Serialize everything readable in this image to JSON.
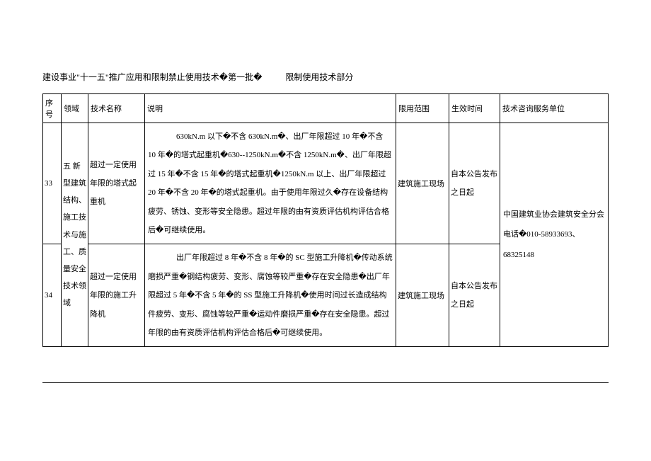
{
  "title_main": "建设事业\"十一五\"推广应用和限制禁止使用技术�第一批�",
  "title_sub": "限制使用技术部分",
  "headers": {
    "seq": "序号",
    "domain": "领域",
    "tech": "技术名称",
    "desc": "说明",
    "scope": "限用范围",
    "time": "生效时间",
    "service": "技术咨询服务单位"
  },
  "rows": {
    "r1": {
      "seq": "33",
      "tech": "超过一定使用年限的塔式起重机",
      "desc": "630kN.m 以下�不含 630kN.m�、出厂年限超过 10 年�不含 10 年�的塔式起重机�630--1250kN.m�不含 1250kN.m�、出厂年限超过 15 年�不含 15 年�的塔式起重机�1250kN.m 以上、出厂年限超过 20 年�不含 20 年�的塔式起重机。由于使用年限过久�存在设备结构疲劳、锈蚀、变形等安全隐患。超过年限的由有资质评估机构评估合格后�可继续使用。",
      "scope": "建筑施工现场",
      "time": "自本公告发布之日起"
    },
    "r2": {
      "seq": " 34",
      "tech": "超过一定使用年限的施工升降机",
      "desc": "出厂年限超过 8 年�不含 8 年�的 SC 型施工升降机�传动系统磨损严重�钢结构疲劳、变形、腐蚀等较严重�存在安全隐患�出厂年限超过 5 年�不含 5 年�的 SS 型施工升降机�使用时间过长造成结构件疲劳、变形、腐蚀等较严重�运动件磨损严重�存在安全隐患。超过年限的由有资质评估机构评估合格后�可继续使用。"
    },
    "domain_merged": "五 新型建筑结构、施工技术与施工、质量安全技术领域",
    "scope_merged2": "建筑施工现场",
    "time_merged2": "自本公告发布之日起",
    "service_merged": "中国建筑业协会建筑安全分会电话�010-58933693、68325148"
  }
}
